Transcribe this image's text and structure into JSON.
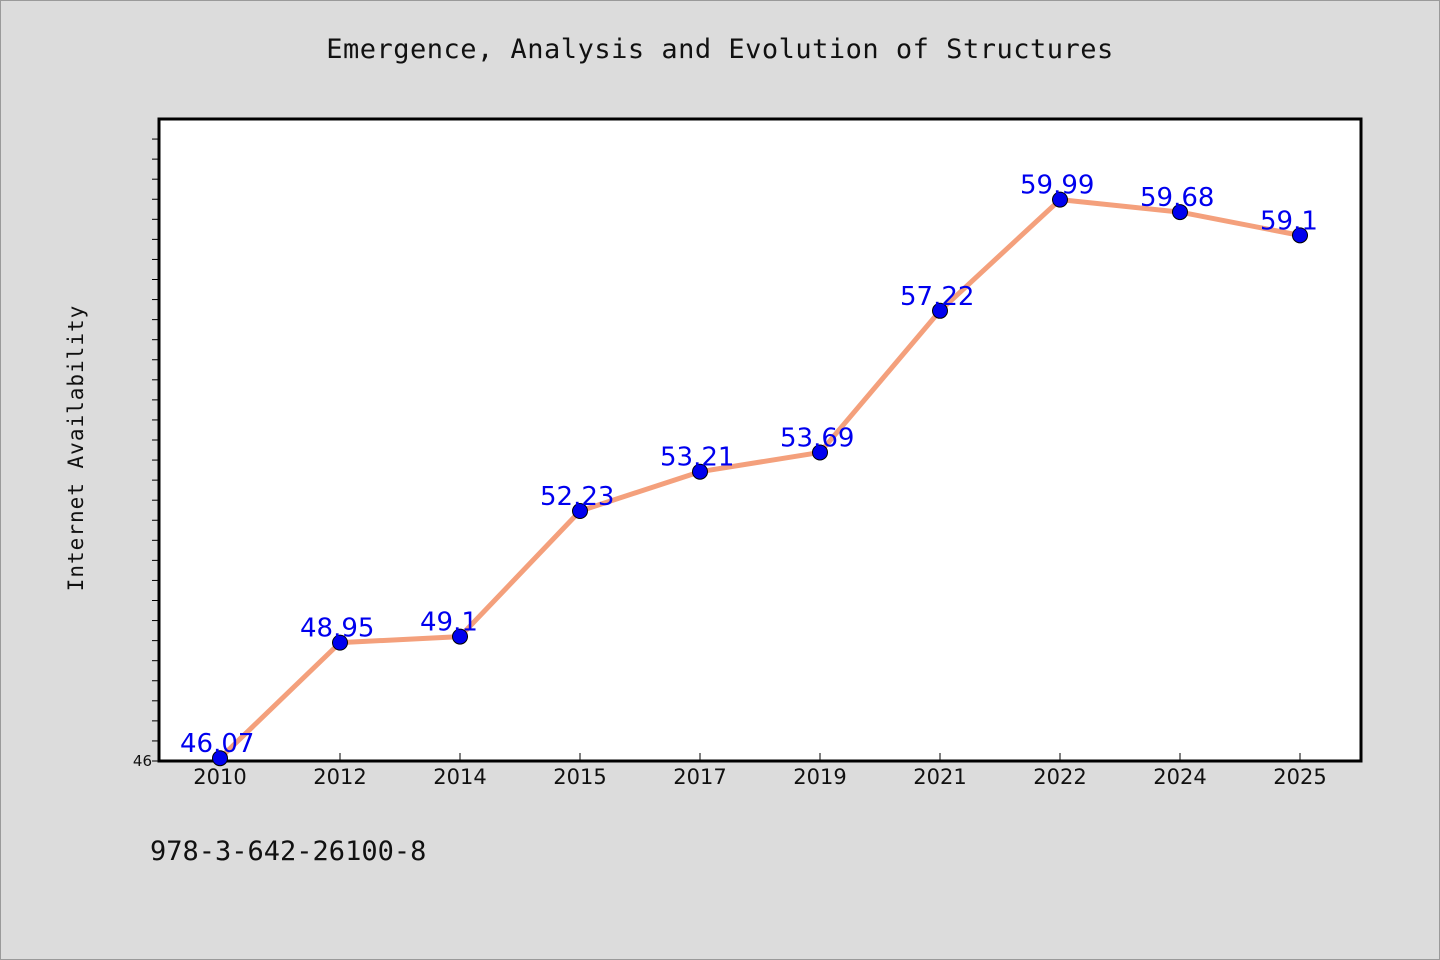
{
  "chart_data": {
    "type": "line",
    "title": "Emergence, Analysis and Evolution of Structures",
    "ylabel": "Internet Availability",
    "xlabel": "",
    "categories": [
      "2010",
      "2012",
      "2014",
      "2015",
      "2017",
      "2019",
      "2021",
      "2022",
      "2024",
      "2025"
    ],
    "series": [
      {
        "values": [
          46.07,
          48.95,
          49.1,
          52.23,
          53.21,
          53.69,
          57.22,
          59.99,
          59.68,
          59.1
        ],
        "labels": [
          "46.07",
          "48.95",
          "49.1",
          "52.23",
          "53.21",
          "53.69",
          "57.22",
          "59.99",
          "59.68",
          "59.1"
        ]
      }
    ],
    "ylim": [
      46,
      62
    ],
    "ytick_labels": [
      "46"
    ],
    "line_color": "#f4a07c",
    "marker_color": "#0000ee",
    "label_color": "#0000ee",
    "plot_background": "#ffffff",
    "page_background": "#dcdcdc",
    "grid": false,
    "legend": "none"
  },
  "footer": {
    "isbn": "978-3-642-26100-8"
  }
}
